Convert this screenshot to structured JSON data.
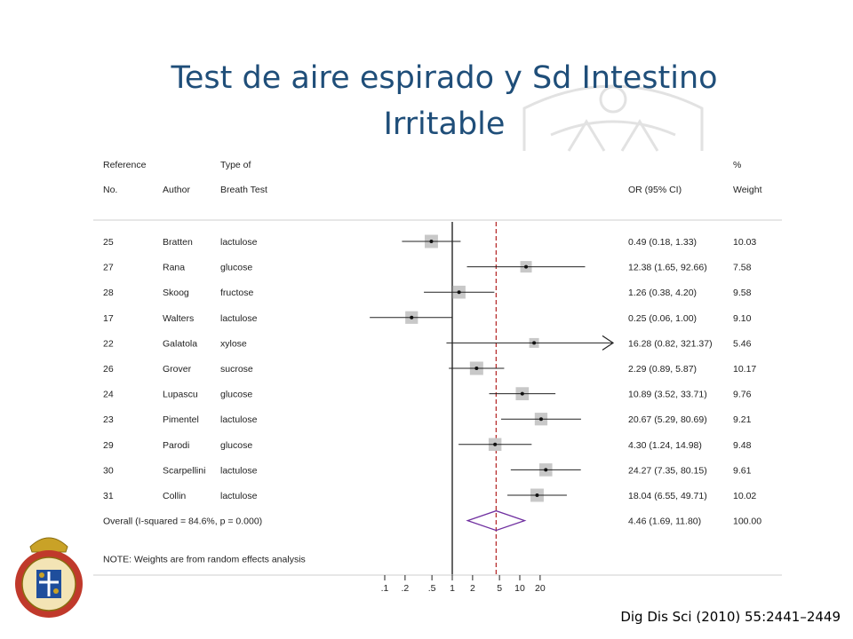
{
  "slide": {
    "title_line1": "Test de aire espirado y Sd Intestino",
    "title_line2": "Irritable",
    "citation": "Dig Dis Sci (2010) 55:2441–2449"
  },
  "colors": {
    "title": "#1f4e79",
    "reference_line": "#b22222",
    "diamond": "#7030a0",
    "weight_box": "#c8c8c8"
  },
  "chart_data": {
    "type": "forest",
    "x_scale": "log",
    "headers": {
      "ref_top": "Reference",
      "ref_bottom": "No.",
      "author": "Author",
      "type_top": "Type of",
      "type_bottom": "Breath Test",
      "or": "OR (95% CI)",
      "weight_top": "%",
      "weight_bottom": "Weight"
    },
    "studies": [
      {
        "ref": "25",
        "author": "Bratten",
        "test": "lactulose",
        "or": 0.49,
        "lo": 0.18,
        "hi": 1.33,
        "label": "0.49 (0.18, 1.33)",
        "weight": "10.03"
      },
      {
        "ref": "27",
        "author": "Rana",
        "test": "glucose",
        "or": 12.38,
        "lo": 1.65,
        "hi": 92.66,
        "label": "12.38 (1.65, 92.66)",
        "weight": "7.58"
      },
      {
        "ref": "28",
        "author": "Skoog",
        "test": "fructose",
        "or": 1.26,
        "lo": 0.38,
        "hi": 4.2,
        "label": "1.26 (0.38, 4.20)",
        "weight": "9.58"
      },
      {
        "ref": "17",
        "author": "Walters",
        "test": "lactulose",
        "or": 0.25,
        "lo": 0.06,
        "hi": 1.0,
        "label": "0.25 (0.06, 1.00)",
        "weight": "9.10"
      },
      {
        "ref": "22",
        "author": "Galatola",
        "test": "xylose",
        "or": 16.28,
        "lo": 0.82,
        "hi": 321.37,
        "label": "16.28 (0.82, 321.37)",
        "weight": "5.46"
      },
      {
        "ref": "26",
        "author": "Grover",
        "test": "sucrose",
        "or": 2.29,
        "lo": 0.89,
        "hi": 5.87,
        "label": "2.29 (0.89, 5.87)",
        "weight": "10.17"
      },
      {
        "ref": "24",
        "author": "Lupascu",
        "test": "glucose",
        "or": 10.89,
        "lo": 3.52,
        "hi": 33.71,
        "label": "10.89 (3.52, 33.71)",
        "weight": "9.76"
      },
      {
        "ref": "23",
        "author": "Pimentel",
        "test": "lactulose",
        "or": 20.67,
        "lo": 5.29,
        "hi": 80.69,
        "label": "20.67 (5.29, 80.69)",
        "weight": "9.21"
      },
      {
        "ref": "29",
        "author": "Parodi",
        "test": "glucose",
        "or": 4.3,
        "lo": 1.24,
        "hi": 14.98,
        "label": "4.30 (1.24, 14.98)",
        "weight": "9.48"
      },
      {
        "ref": "30",
        "author": "Scarpellini",
        "test": "lactulose",
        "or": 24.27,
        "lo": 7.35,
        "hi": 80.15,
        "label": "24.27 (7.35, 80.15)",
        "weight": "9.61"
      },
      {
        "ref": "31",
        "author": "Collin",
        "test": "lactulose",
        "or": 18.04,
        "lo": 6.55,
        "hi": 49.71,
        "label": "18.04 (6.55, 49.71)",
        "weight": "10.02"
      }
    ],
    "overall": {
      "text": "Overall  (I-squared = 84.6%, p = 0.000)",
      "or": 4.46,
      "lo": 1.69,
      "hi": 11.8,
      "label": "4.46 (1.69, 11.80)",
      "weight": "100.00"
    },
    "note": "NOTE: Weights are from random effects analysis",
    "x_ticks": [
      {
        "value": 0.1,
        "label": ".1"
      },
      {
        "value": 0.2,
        "label": ".2"
      },
      {
        "value": 0.5,
        "label": ".5"
      },
      {
        "value": 1,
        "label": "1"
      },
      {
        "value": 2,
        "label": "2"
      },
      {
        "value": 5,
        "label": "5"
      },
      {
        "value": 10,
        "label": "10"
      },
      {
        "value": 20,
        "label": "20"
      }
    ],
    "null_value": 1,
    "pooled_line_value": 4.46
  }
}
